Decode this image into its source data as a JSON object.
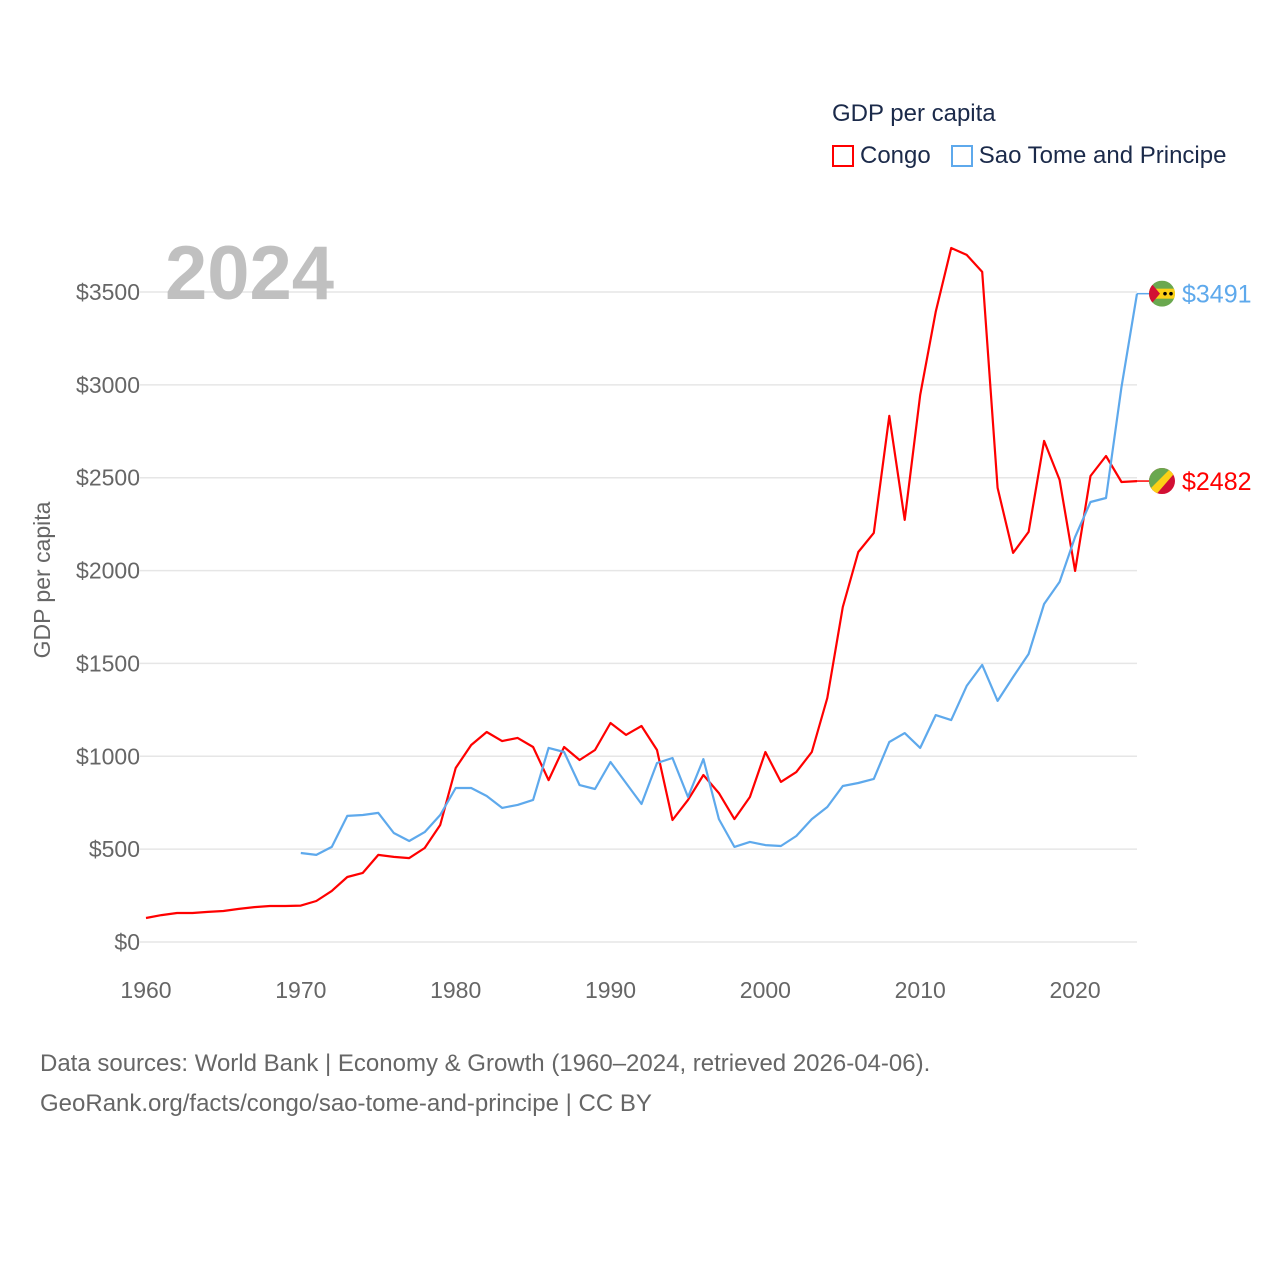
{
  "chart_data": {
    "type": "line",
    "title": "GDP per capita",
    "year_label": "2024",
    "xlabel": "",
    "ylabel": "GDP per capita",
    "xlim": [
      1960,
      2024
    ],
    "ylim": [
      0,
      3500
    ],
    "x_ticks": [
      1960,
      1970,
      1980,
      1990,
      2000,
      2010,
      2020
    ],
    "y_ticks": [
      0,
      500,
      1000,
      1500,
      2000,
      2500,
      3000,
      3500
    ],
    "y_tick_labels": [
      "$0",
      "$500",
      "$1000",
      "$1500",
      "$2000",
      "$2500",
      "$3000",
      "$3500"
    ],
    "grid": true,
    "legend_position": "top-right",
    "series": [
      {
        "name": "Congo",
        "color": "#ff0000",
        "start_year": 1960,
        "end_label": "$2482",
        "values": [
          129,
          145,
          156,
          156,
          162,
          167,
          178,
          188,
          194,
          194,
          196,
          221,
          275,
          350,
          372,
          469,
          458,
          452,
          506,
          630,
          937,
          1061,
          1131,
          1082,
          1099,
          1050,
          872,
          1050,
          980,
          1034,
          1179,
          1115,
          1163,
          1034,
          657,
          765,
          899,
          802,
          662,
          781,
          1023,
          862,
          915,
          1023,
          1314,
          1804,
          2100,
          2203,
          2833,
          2273,
          2946,
          3393,
          3737,
          3700,
          3608,
          2445,
          2095,
          2208,
          2698,
          2488,
          1998,
          2509,
          2617,
          2477,
          2482
        ]
      },
      {
        "name": "Sao Tome and Principe",
        "color": "#5ea9ec",
        "start_year": 1970,
        "end_label": "$3491",
        "values": [
          479,
          469,
          512,
          679,
          684,
          695,
          587,
          544,
          592,
          684,
          829,
          829,
          786,
          722,
          738,
          765,
          1045,
          1023,
          845,
          824,
          969,
          856,
          743,
          964,
          991,
          781,
          985,
          662,
          512,
          539,
          522,
          517,
          571,
          662,
          727,
          840,
          856,
          878,
          1077,
          1125,
          1045,
          1222,
          1195,
          1379,
          1492,
          1298,
          1427,
          1551,
          1820,
          1939,
          2181,
          2369,
          2391,
          2989,
          3491
        ]
      }
    ]
  },
  "footer": {
    "line1": "Data sources: World Bank | Economy & Growth (1960–2024, retrieved 2026-04-06).",
    "line2": "GeoRank.org/facts/congo/sao-tome-and-principe | CC BY"
  }
}
